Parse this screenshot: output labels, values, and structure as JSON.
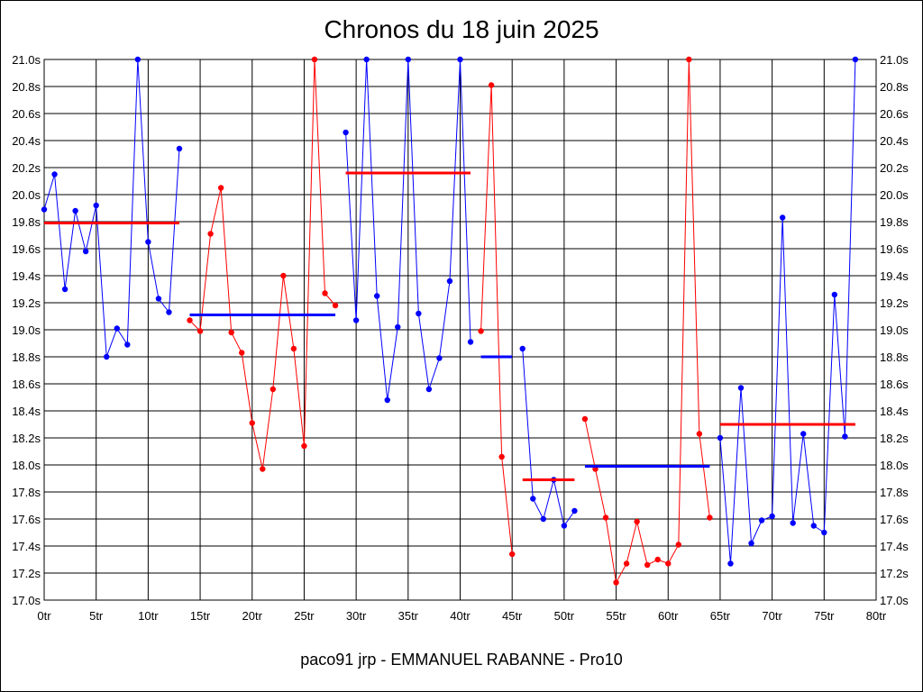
{
  "chart_data": {
    "type": "line",
    "title": "Chronos du 18 juin 2025",
    "footer": "paco91 jrp - EMMANUEL RABANNE - Pro10",
    "xlim": [
      0,
      80
    ],
    "ylim": [
      17.0,
      21.0
    ],
    "x_tick_labels": [
      "0tr",
      "5tr",
      "10tr",
      "15tr",
      "20tr",
      "25tr",
      "30tr",
      "35tr",
      "40tr",
      "45tr",
      "50tr",
      "55tr",
      "60tr",
      "65tr",
      "70tr",
      "75tr",
      "80tr"
    ],
    "y_tick_labels": [
      "17.0s",
      "17.2s",
      "17.4s",
      "17.6s",
      "17.8s",
      "18.0s",
      "18.2s",
      "18.4s",
      "18.6s",
      "18.8s",
      "19.0s",
      "19.2s",
      "19.4s",
      "19.6s",
      "19.8s",
      "20.0s",
      "20.2s",
      "20.4s",
      "20.6s",
      "20.8s",
      "21.0s"
    ],
    "grid": true,
    "colors": {
      "blue": "#0000ff",
      "red": "#ff0000"
    },
    "segments": [
      {
        "color": "blue",
        "x": [
          0,
          1,
          2,
          3,
          4,
          5,
          6,
          7,
          8,
          9,
          10,
          11,
          12,
          13
        ],
        "y": [
          19.89,
          20.15,
          19.3,
          19.88,
          19.58,
          19.92,
          18.8,
          19.01,
          18.89,
          21.0,
          19.65,
          19.23,
          19.13,
          20.34
        ]
      },
      {
        "color": "red",
        "x": [
          14,
          15,
          16,
          17,
          18,
          19,
          20,
          21,
          22,
          23,
          24,
          25,
          26,
          27,
          28
        ],
        "y": [
          19.07,
          18.99,
          19.71,
          20.05,
          18.98,
          18.83,
          18.31,
          17.97,
          18.56,
          19.4,
          18.86,
          18.14,
          21.0,
          19.27,
          19.18
        ]
      },
      {
        "color": "blue",
        "x": [
          29,
          30,
          31,
          32,
          33,
          34,
          35,
          36,
          37,
          38,
          39,
          40,
          41
        ],
        "y": [
          20.46,
          19.07,
          21.0,
          19.25,
          18.48,
          19.02,
          21.0,
          19.12,
          18.56,
          18.79,
          19.36,
          21.0,
          18.91
        ]
      },
      {
        "color": "red",
        "x": [
          42,
          43,
          44,
          45
        ],
        "y": [
          18.99,
          20.81,
          18.06,
          17.34
        ]
      },
      {
        "color": "blue",
        "x": [
          46,
          47,
          48,
          49,
          50,
          51
        ],
        "y": [
          18.86,
          17.75,
          17.6,
          17.89,
          17.55,
          17.66
        ]
      },
      {
        "color": "red",
        "x": [
          52,
          53,
          54,
          55,
          56,
          57,
          58,
          59,
          60,
          61,
          62,
          63,
          64
        ],
        "y": [
          18.34,
          17.97,
          17.61,
          17.13,
          17.27,
          17.58,
          17.26,
          17.3,
          17.27,
          17.41,
          21.0,
          18.23,
          17.61
        ]
      },
      {
        "color": "blue",
        "x": [
          65,
          66,
          67,
          68,
          69,
          70,
          71,
          72,
          73,
          74,
          75,
          76,
          77,
          78
        ],
        "y": [
          18.2,
          17.27,
          18.57,
          17.42,
          17.59,
          17.62,
          19.83,
          17.57,
          18.23,
          17.55,
          17.5,
          19.26,
          18.21,
          21.0
        ]
      }
    ],
    "averages": [
      {
        "color": "red",
        "x": [
          0,
          13
        ],
        "y": 19.79
      },
      {
        "color": "blue",
        "x": [
          14,
          28
        ],
        "y": 19.11
      },
      {
        "color": "red",
        "x": [
          29,
          41
        ],
        "y": 20.16
      },
      {
        "color": "blue",
        "x": [
          42,
          45
        ],
        "y": 18.8
      },
      {
        "color": "red",
        "x": [
          46,
          51
        ],
        "y": 17.89
      },
      {
        "color": "blue",
        "x": [
          52,
          64
        ],
        "y": 17.99
      },
      {
        "color": "red",
        "x": [
          65,
          78
        ],
        "y": 18.3
      }
    ]
  }
}
